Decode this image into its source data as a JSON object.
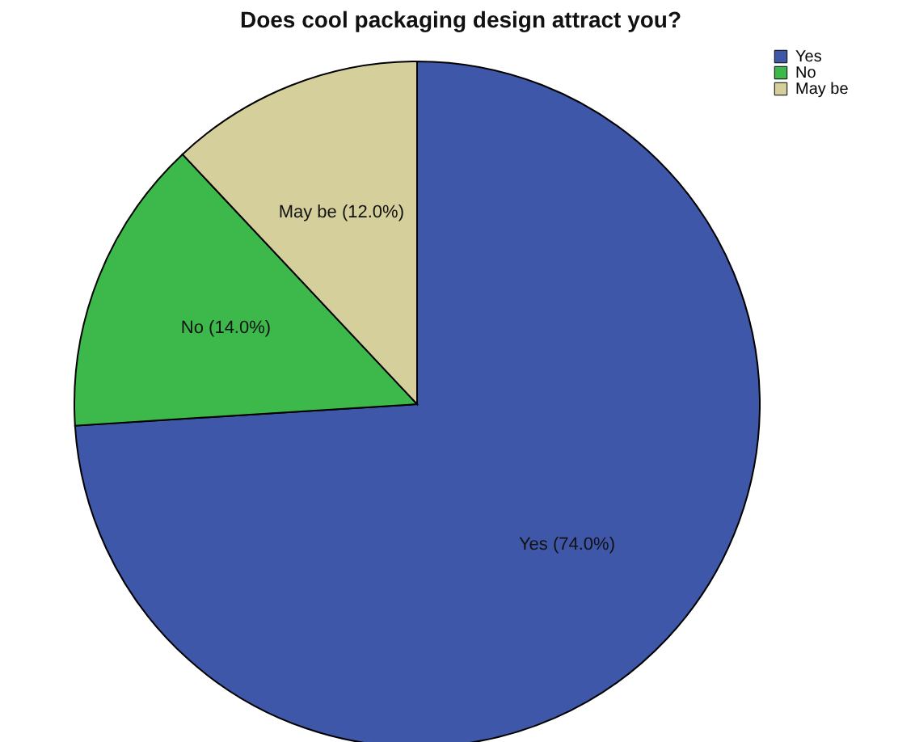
{
  "chart_data": {
    "type": "pie",
    "title": "Does cool packaging design attract you?",
    "categories": [
      "Yes",
      "No",
      "May be"
    ],
    "values": [
      74.0,
      14.0,
      12.0
    ],
    "colors": [
      "#3f57a8",
      "#3db94b",
      "#d5cf9c"
    ],
    "value_labels": [
      "Yes (74.0%)",
      "No (14.0%)",
      "May be (12.0%)"
    ],
    "legend": "top right"
  }
}
